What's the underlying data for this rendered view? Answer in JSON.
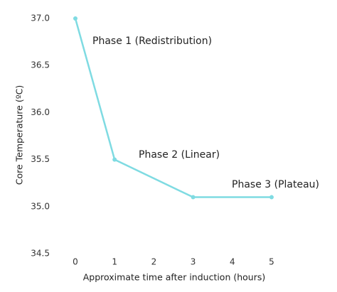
{
  "chart_data": {
    "type": "line",
    "x": [
      0,
      1,
      3,
      5
    ],
    "values": [
      37.0,
      35.5,
      35.1,
      35.1
    ],
    "color": "#7fdbe2",
    "xlim": [
      0,
      5
    ],
    "xticks": [
      0,
      1,
      2,
      3,
      4,
      5
    ],
    "ylim": [
      34.5,
      37.0
    ],
    "yticks": [
      34.5,
      {
        "value": 35.0,
        "label": "35.0"
      },
      35.5,
      {
        "value": 36.0,
        "label": "36.0"
      },
      36.5,
      {
        "value": 37.0,
        "label": "37.0"
      }
    ],
    "xlabel": "Approximate time after induction (hours)",
    "ylabel": "Core Temperature (ºC)",
    "annotations": [
      "Phase 1 (Redistribution)",
      "Phase 2 (Linear)",
      "Phase 3 (Plateau)"
    ],
    "grid": false
  }
}
